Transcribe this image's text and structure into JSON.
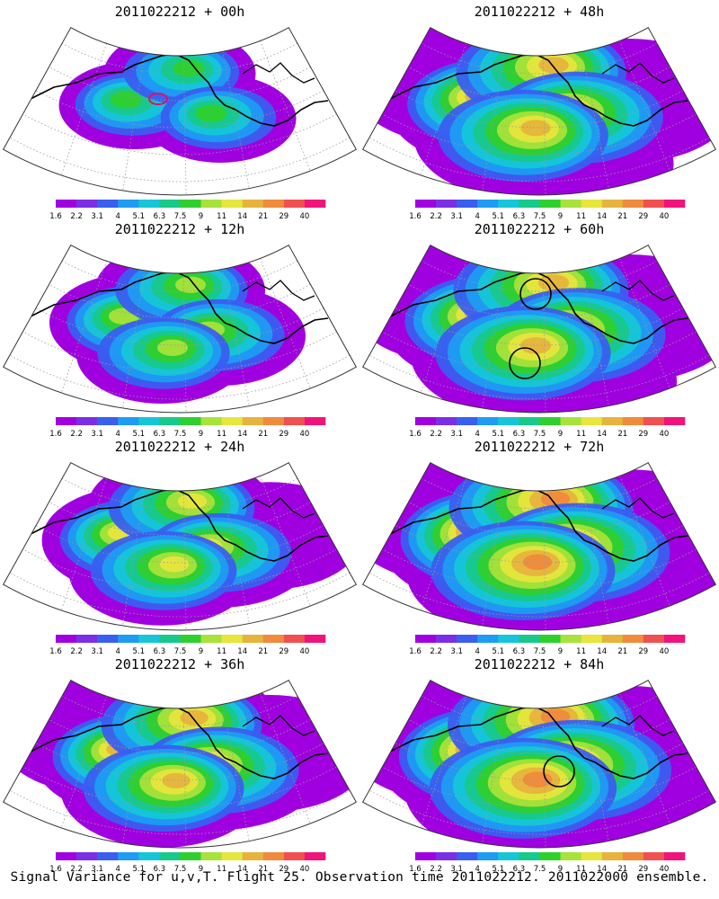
{
  "caption": "Signal Variance for u,v,T. Flight 25. Observation time 2011022212. 2011022000 ensemble.",
  "colorbar": {
    "labels": [
      "1.6",
      "2.2",
      "3.1",
      "4",
      "5.1",
      "6.3",
      "7.5",
      "9",
      "11",
      "14",
      "21",
      "29",
      "40"
    ],
    "colors": [
      "#a000e0",
      "#7a2ee6",
      "#3a5ef0",
      "#1e9cf2",
      "#16c6d8",
      "#17c98a",
      "#2ed02e",
      "#a8e23a",
      "#e6e63c",
      "#e6b43c",
      "#f08a3c",
      "#f05050",
      "#f0147a"
    ]
  },
  "panels": [
    {
      "title": "2011022212 + 00h",
      "spread": 0.35,
      "circles": [],
      "red_marker": true
    },
    {
      "title": "2011022212 + 48h",
      "spread": 0.85,
      "circles": [],
      "red_marker": false
    },
    {
      "title": "2011022212 + 12h",
      "spread": 0.5,
      "circles": [],
      "red_marker": false
    },
    {
      "title": "2011022212 + 60h",
      "spread": 0.9,
      "circles": [
        "alaska",
        "gulf"
      ],
      "red_marker": false
    },
    {
      "title": "2011022212 + 24h",
      "spread": 0.62,
      "circles": [],
      "red_marker": false
    },
    {
      "title": "2011022212 + 72h",
      "spread": 0.97,
      "circles": [],
      "red_marker": false
    },
    {
      "title": "2011022212 + 36h",
      "spread": 0.75,
      "circles": [],
      "red_marker": false
    },
    {
      "title": "2011022212 + 84h",
      "spread": 1.0,
      "circles": [
        "pacific-nw"
      ],
      "red_marker": false
    }
  ]
}
